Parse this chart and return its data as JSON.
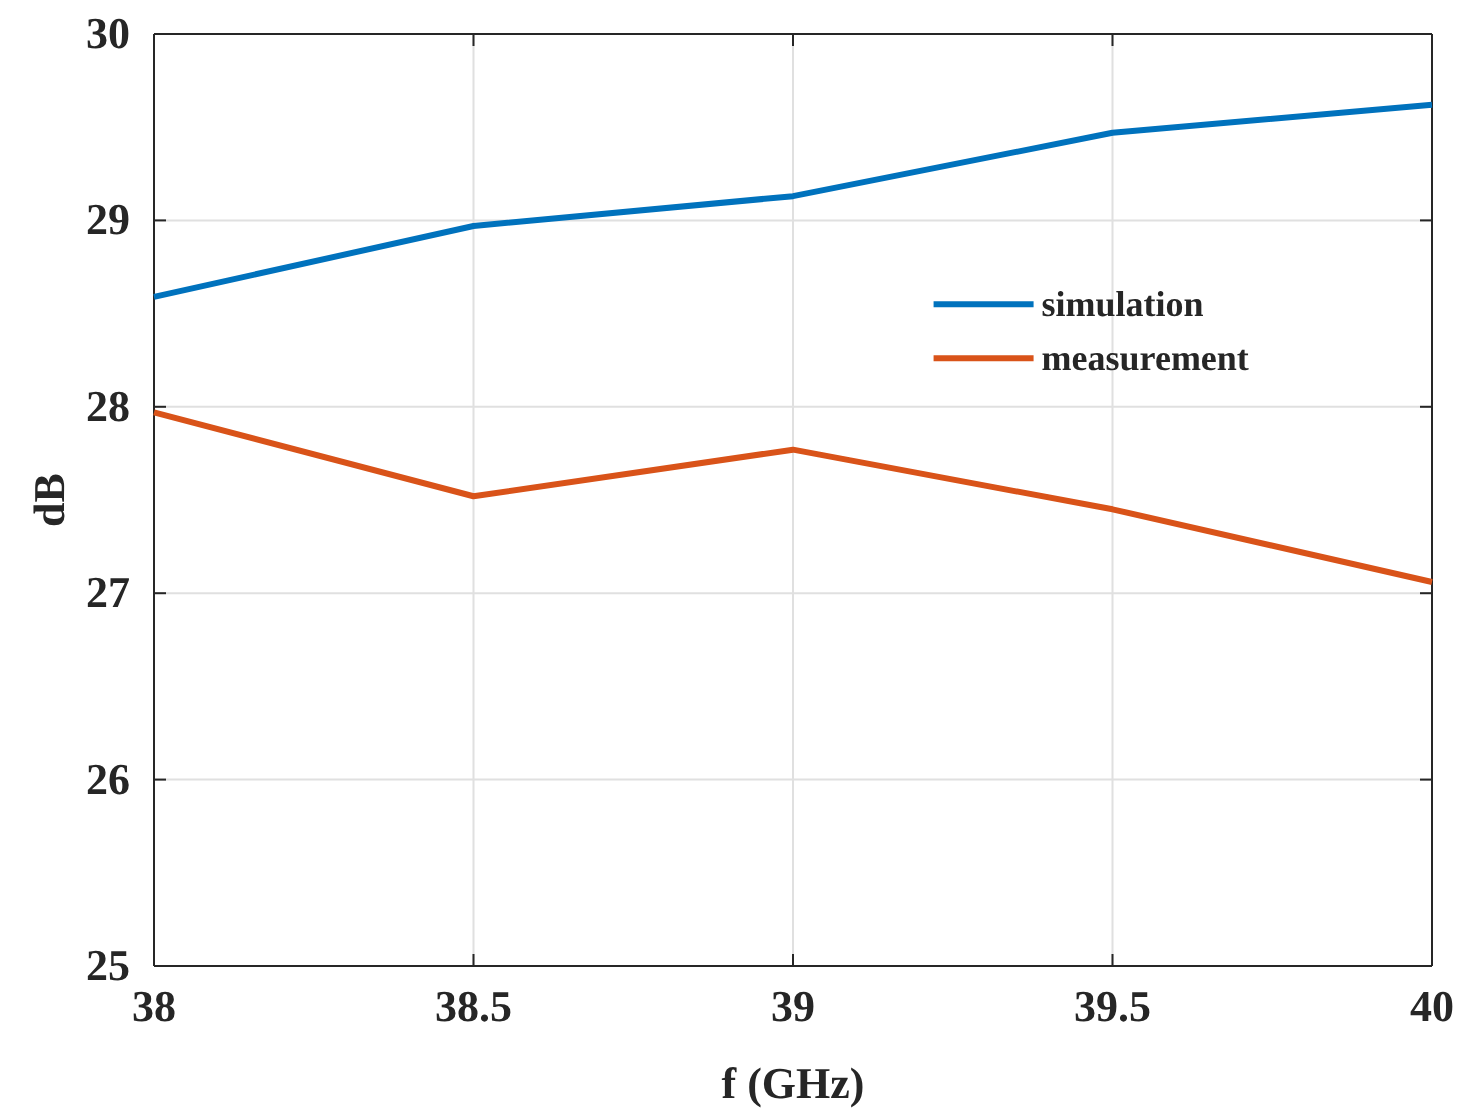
{
  "chart_data": {
    "type": "line",
    "xlabel": "f (GHz)",
    "ylabel": "dB",
    "x": [
      38,
      38.5,
      39,
      39.5,
      40
    ],
    "series": [
      {
        "name": "simulation",
        "color": "#0072bd",
        "values": [
          28.59,
          28.97,
          29.13,
          29.47,
          29.62
        ]
      },
      {
        "name": "measurement",
        "color": "#d95319",
        "values": [
          27.97,
          27.52,
          27.77,
          27.45,
          27.06
        ]
      }
    ],
    "xlim": [
      38,
      40
    ],
    "xticks": [
      38,
      38.5,
      39,
      39.5,
      40
    ],
    "ylim": [
      25,
      30
    ],
    "yticks": [
      25,
      26,
      27,
      28,
      29,
      30
    ],
    "grid": true,
    "legend": "right",
    "marker": "none",
    "line_style": "solid"
  }
}
